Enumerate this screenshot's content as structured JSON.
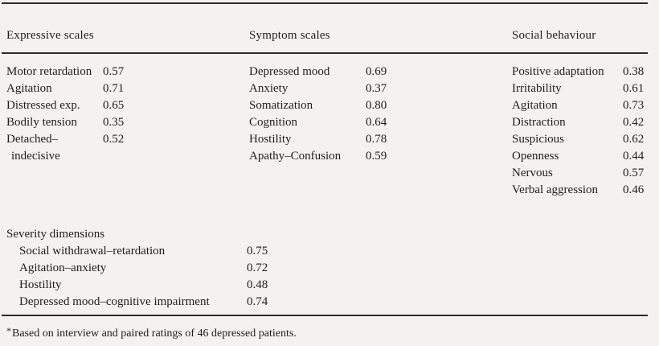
{
  "table": {
    "columns": [
      {
        "header": "Expressive scales",
        "rows": [
          {
            "label": "Motor retardation",
            "value": "0.57"
          },
          {
            "label": "Agitation",
            "value": "0.71"
          },
          {
            "label": "Distressed exp.",
            "value": "0.65"
          },
          {
            "label": "Bodily tension",
            "value": "0.35"
          },
          {
            "label": "Detached–indecisive",
            "value": "0.52"
          }
        ]
      },
      {
        "header": "Symptom scales",
        "rows": [
          {
            "label": "Depressed mood",
            "value": "0.69"
          },
          {
            "label": "Anxiety",
            "value": "0.37"
          },
          {
            "label": "Somatization",
            "value": "0.80"
          },
          {
            "label": "Cognition",
            "value": "0.64"
          },
          {
            "label": "Hostility",
            "value": "0.78"
          },
          {
            "label": "Apathy–Confusion",
            "value": "0.59"
          }
        ]
      },
      {
        "header": "Social behaviour",
        "rows": [
          {
            "label": "Positive adaptation",
            "value": "0.38"
          },
          {
            "label": "Irritability",
            "value": "0.61"
          },
          {
            "label": "Agitation",
            "value": "0.73"
          },
          {
            "label": "Distraction",
            "value": "0.42"
          },
          {
            "label": "Suspicious",
            "value": "0.62"
          },
          {
            "label": "Openness",
            "value": "0.44"
          },
          {
            "label": "Nervous",
            "value": "0.57"
          },
          {
            "label": "Verbal aggression",
            "value": "0.46"
          }
        ]
      }
    ],
    "severity": {
      "header": "Severity dimensions",
      "rows": [
        {
          "label": "Social withdrawal–retardation",
          "value": "0.75"
        },
        {
          "label": "Agitation–anxiety",
          "value": "0.72"
        },
        {
          "label": "Hostility",
          "value": "0.48"
        },
        {
          "label": "Depressed mood–cognitive impairment",
          "value": "0.74"
        }
      ]
    },
    "footnote": {
      "marker": "*",
      "text": "Based on interview and paired ratings of 46 depressed patients."
    }
  }
}
